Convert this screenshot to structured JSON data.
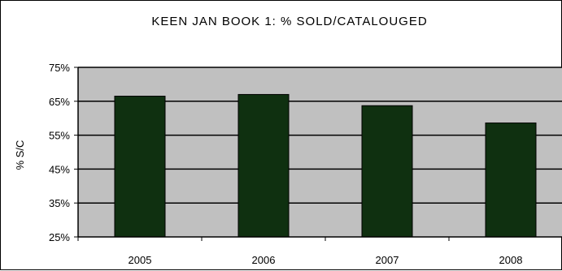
{
  "chart_data": {
    "type": "bar",
    "title": "KEEN JAN BOOK 1: % SOLD/CATALOUGED",
    "xlabel": "",
    "ylabel": "% S/C",
    "categories": [
      "2005",
      "2006",
      "2007",
      "2008"
    ],
    "series": [
      {
        "values": [
          66.5,
          67,
          63.7,
          58.6
        ]
      }
    ],
    "ylim": [
      25,
      75
    ],
    "yticks": [
      25,
      35,
      45,
      55,
      65,
      75
    ],
    "ytick_labels": [
      "25%",
      "35%",
      "45%",
      "55%",
      "65%",
      "75%"
    ],
    "grid": true,
    "legend": "none",
    "colors": {
      "bar": "#0f3010",
      "plot_background": "#c0c0c0",
      "gridline": "#000000",
      "axis": "#000000",
      "text": "#000000"
    }
  }
}
